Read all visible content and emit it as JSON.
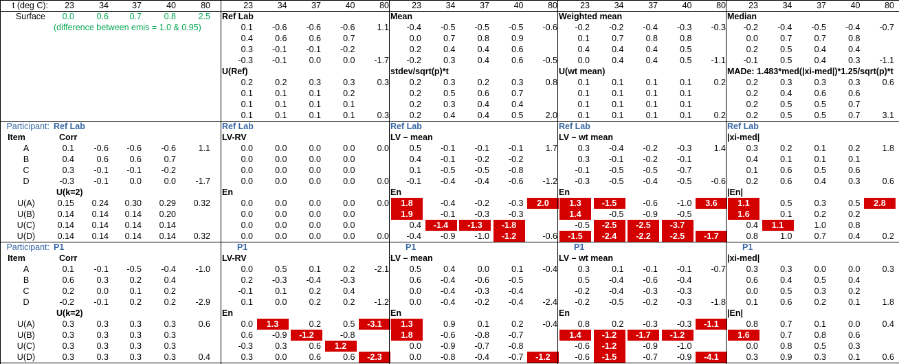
{
  "header": {
    "label": "t (deg C):",
    "temps": [
      "23",
      "34",
      "37",
      "40",
      "80"
    ]
  },
  "surface": {
    "label": "Surface",
    "values": [
      "0.0",
      "0.6",
      "0.7",
      "0.8",
      "2.5"
    ],
    "note": "(difference between emis = 1.0 & 0.95)"
  },
  "stats": [
    {
      "title": "Ref Lab",
      "rows": [
        [
          "0.1",
          "-0.6",
          "-0.6",
          "-0.6",
          "1.1"
        ],
        [
          "0.4",
          "0.6",
          "0.6",
          "0.7",
          ""
        ],
        [
          "0.3",
          "-0.1",
          "-0.1",
          "-0.2",
          ""
        ],
        [
          "-0.3",
          "-0.1",
          "0.0",
          "0.0",
          "-1.7"
        ]
      ],
      "u_title": "U(Ref)",
      "u_rows": [
        [
          "0.2",
          "0.2",
          "0.3",
          "0.3",
          "0.3"
        ],
        [
          "0.1",
          "0.1",
          "0.1",
          "0.2",
          ""
        ],
        [
          "0.1",
          "0.1",
          "0.1",
          "0.1",
          ""
        ],
        [
          "0.1",
          "0.1",
          "0.1",
          "0.1",
          "0.3"
        ]
      ]
    },
    {
      "title": "Mean",
      "rows": [
        [
          "-0.4",
          "-0.5",
          "-0.5",
          "-0.5",
          "-0.6"
        ],
        [
          "0.0",
          "0.7",
          "0.8",
          "0.9",
          ""
        ],
        [
          "0.2",
          "0.4",
          "0.4",
          "0.6",
          ""
        ],
        [
          "-0.2",
          "0.3",
          "0.4",
          "0.6",
          "-0.5"
        ]
      ],
      "u_title": "stdev/sqrt(p)*t",
      "u_rows": [
        [
          "0.2",
          "0.3",
          "0.2",
          "0.3",
          "0.8"
        ],
        [
          "0.2",
          "0.5",
          "0.6",
          "0.7",
          ""
        ],
        [
          "0.2",
          "0.3",
          "0.4",
          "0.4",
          ""
        ],
        [
          "0.2",
          "0.4",
          "0.4",
          "0.5",
          "2.0"
        ]
      ]
    },
    {
      "title": "Weighted mean",
      "rows": [
        [
          "-0.2",
          "-0.2",
          "-0.4",
          "-0.3",
          "-0.3"
        ],
        [
          "0.1",
          "0.7",
          "0.8",
          "0.8",
          ""
        ],
        [
          "0.4",
          "0.4",
          "0.4",
          "0.5",
          ""
        ],
        [
          "0.0",
          "0.4",
          "0.4",
          "0.5",
          "-1.1"
        ]
      ],
      "u_title": "U(wt mean)",
      "u_rows": [
        [
          "0.1",
          "0.1",
          "0.1",
          "0.1",
          "0.2"
        ],
        [
          "0.1",
          "0.1",
          "0.1",
          "0.1",
          ""
        ],
        [
          "0.1",
          "0.1",
          "0.1",
          "0.1",
          ""
        ],
        [
          "0.1",
          "0.1",
          "0.1",
          "0.1",
          "0.2"
        ]
      ]
    },
    {
      "title": "Median",
      "rows": [
        [
          "-0.2",
          "-0.4",
          "-0.5",
          "-0.4",
          "-0.7"
        ],
        [
          "0.0",
          "0.7",
          "0.7",
          "0.8",
          ""
        ],
        [
          "0.2",
          "0.5",
          "0.4",
          "0.4",
          ""
        ],
        [
          "-0.1",
          "0.5",
          "0.4",
          "0.3",
          "-1.1"
        ]
      ],
      "u_title": "MADe: 1.483*med(|xi-med|)*1.25/sqrt(p)*t",
      "u_rows": [
        [
          "0.2",
          "0.3",
          "0.3",
          "0.3",
          "0.6"
        ],
        [
          "0.2",
          "0.4",
          "0.6",
          "0.6",
          ""
        ],
        [
          "0.2",
          "0.5",
          "0.5",
          "0.7",
          ""
        ],
        [
          "0.2",
          "0.5",
          "0.5",
          "0.7",
          "3.1"
        ]
      ]
    }
  ],
  "participants": [
    {
      "label": "Participant:",
      "name": "Ref Lab",
      "item_label": "Item",
      "items": [
        "A",
        "B",
        "C",
        "D"
      ],
      "corr_title": "Corr",
      "corr": [
        [
          "0.1",
          "-0.6",
          "-0.6",
          "-0.6",
          "1.1"
        ],
        [
          "0.4",
          "0.6",
          "0.6",
          "0.7",
          ""
        ],
        [
          "0.3",
          "-0.1",
          "-0.1",
          "-0.2",
          ""
        ],
        [
          "-0.3",
          "-0.1",
          "0.0",
          "0.0",
          "-1.7"
        ]
      ],
      "u_title": "U(k=2)",
      "u_labels": [
        "U(A)",
        "U(B)",
        "U(C)",
        "U(D)"
      ],
      "u": [
        [
          "0.15",
          "0.24",
          "0.30",
          "0.29",
          "0.32"
        ],
        [
          "0.14",
          "0.14",
          "0.14",
          "0.20",
          ""
        ],
        [
          "0.14",
          "0.14",
          "0.14",
          "0.14",
          ""
        ],
        [
          "0.14",
          "0.14",
          "0.14",
          "0.14",
          "0.32"
        ]
      ],
      "blocks": [
        {
          "name": "Ref Lab",
          "title": "LV-RV",
          "rows": [
            [
              "0.0",
              "0.0",
              "0.0",
              "0.0",
              "0.0"
            ],
            [
              "0.0",
              "0.0",
              "0.0",
              "0.0",
              ""
            ],
            [
              "0.0",
              "0.0",
              "0.0",
              "0.0",
              ""
            ],
            [
              "0.0",
              "0.0",
              "0.0",
              "0.0",
              "0.0"
            ]
          ],
          "en_title": "En",
          "en": [
            [
              "0.0",
              "0.0",
              "0.0",
              "0.0",
              "0.0"
            ],
            [
              "0.0",
              "0.0",
              "0.0",
              "0.0",
              ""
            ],
            [
              "0.0",
              "0.0",
              "0.0",
              "0.0",
              ""
            ],
            [
              "0.0",
              "0.0",
              "0.0",
              "0.0",
              "0.0"
            ]
          ]
        },
        {
          "name": "Ref Lab",
          "title": "LV – mean",
          "rows": [
            [
              "0.5",
              "-0.1",
              "-0.1",
              "-0.1",
              "1.7"
            ],
            [
              "0.4",
              "-0.1",
              "-0.2",
              "-0.2",
              ""
            ],
            [
              "0.1",
              "-0.5",
              "-0.5",
              "-0.8",
              ""
            ],
            [
              "-0.1",
              "-0.4",
              "-0.4",
              "-0.6",
              "-1.2"
            ]
          ],
          "en_title": "En",
          "en": [
            [
              "1.8",
              "-0.4",
              "-0.2",
              "-0.3",
              "2.0"
            ],
            [
              "1.9",
              "-0.1",
              "-0.3",
              "-0.3",
              ""
            ],
            [
              "0.4",
              "-1.4",
              "-1.3",
              "-1.8",
              ""
            ],
            [
              "-0.4",
              "-0.9",
              "-1.0",
              "-1.2",
              "-0.6"
            ]
          ]
        },
        {
          "name": "Ref Lab",
          "title": "LV – wt mean",
          "rows": [
            [
              "0.3",
              "-0.4",
              "-0.2",
              "-0.3",
              "1.4"
            ],
            [
              "0.3",
              "-0.1",
              "-0.2",
              "-0.1",
              ""
            ],
            [
              "-0.1",
              "-0.5",
              "-0.5",
              "-0.7",
              ""
            ],
            [
              "-0.3",
              "-0.5",
              "-0.4",
              "-0.5",
              "-0.6"
            ]
          ],
          "en_title": "En",
          "en": [
            [
              "1.3",
              "-1.5",
              "-0.6",
              "-1.0",
              "3.6"
            ],
            [
              "1.4",
              "-0.5",
              "-0.9",
              "-0.5",
              ""
            ],
            [
              "-0.5",
              "-2.5",
              "-2.5",
              "-3.7",
              ""
            ],
            [
              "-1.5",
              "-2.4",
              "-2.2",
              "-2.5",
              "-1.7"
            ]
          ]
        },
        {
          "name": "Ref Lab",
          "title": "|xi-med|",
          "rows": [
            [
              "0.3",
              "0.2",
              "0.1",
              "0.2",
              "1.8"
            ],
            [
              "0.4",
              "0.1",
              "0.1",
              "0.1",
              ""
            ],
            [
              "0.1",
              "0.6",
              "0.5",
              "0.6",
              ""
            ],
            [
              "0.2",
              "0.6",
              "0.4",
              "0.3",
              "0.6"
            ]
          ],
          "en_title": "|En|",
          "en": [
            [
              "1.1",
              "0.5",
              "0.3",
              "0.5",
              "2.8"
            ],
            [
              "1.6",
              "0.1",
              "0.2",
              "0.2",
              ""
            ],
            [
              "0.4",
              "1.1",
              "1.0",
              "0.8",
              ""
            ],
            [
              "0.8",
              "1.0",
              "0.7",
              "0.4",
              "0.2"
            ]
          ]
        }
      ]
    },
    {
      "label": "Participant:",
      "name": "P1",
      "item_label": "Item",
      "items": [
        "A",
        "B",
        "C",
        "D"
      ],
      "corr_title": "Corr",
      "corr": [
        [
          "0.1",
          "-0.1",
          "-0.5",
          "-0.4",
          "-1.0"
        ],
        [
          "0.6",
          "0.3",
          "0.2",
          "0.4",
          ""
        ],
        [
          "0.2",
          "0.0",
          "0.1",
          "0.2",
          ""
        ],
        [
          "-0.2",
          "-0.1",
          "0.2",
          "0.2",
          "-2.9"
        ]
      ],
      "u_title": "U(k=2)",
      "u_labels": [
        "U(A)",
        "U(B)",
        "U(C)",
        "U(D)"
      ],
      "u": [
        [
          "0.3",
          "0.3",
          "0.3",
          "0.3",
          "0.6"
        ],
        [
          "0.3",
          "0.3",
          "0.3",
          "0.3",
          ""
        ],
        [
          "0.3",
          "0.3",
          "0.3",
          "0.3",
          ""
        ],
        [
          "0.3",
          "0.3",
          "0.3",
          "0.3",
          "0.4"
        ]
      ],
      "blocks": [
        {
          "name": "P1",
          "title": "LV-RV",
          "rows": [
            [
              "0.0",
              "0.5",
              "0.1",
              "0.2",
              "-2.1"
            ],
            [
              "0.2",
              "-0.3",
              "-0.4",
              "-0.3",
              ""
            ],
            [
              "-0.1",
              "0.1",
              "0.2",
              "0.4",
              ""
            ],
            [
              "0.1",
              "0.0",
              "0.2",
              "0.2",
              "-1.2"
            ]
          ],
          "en_title": "En",
          "en": [
            [
              "0.0",
              "1.3",
              "0.2",
              "0.5",
              "-3.1"
            ],
            [
              "0.6",
              "-0.9",
              "-1.2",
              "-0.8",
              ""
            ],
            [
              "-0.3",
              "0.3",
              "0.6",
              "1.2",
              ""
            ],
            [
              "0.3",
              "0.0",
              "0.6",
              "0.6",
              "-2.3"
            ]
          ]
        },
        {
          "name": "P1",
          "title": "LV – mean",
          "rows": [
            [
              "0.5",
              "0.4",
              "0.0",
              "0.1",
              "-0.4"
            ],
            [
              "0.6",
              "-0.4",
              "-0.6",
              "-0.5",
              ""
            ],
            [
              "0.0",
              "-0.4",
              "-0.3",
              "-0.4",
              ""
            ],
            [
              "0.0",
              "-0.4",
              "-0.2",
              "-0.4",
              "-2.4"
            ]
          ],
          "en_title": "En",
          "en": [
            [
              "1.3",
              "0.9",
              "0.1",
              "0.2",
              "-0.4"
            ],
            [
              "1.8",
              "-0.6",
              "-0.8",
              "-0.7",
              ""
            ],
            [
              "0.0",
              "-0.9",
              "-0.7",
              "-0.8",
              ""
            ],
            [
              "0.0",
              "-0.8",
              "-0.4",
              "-0.7",
              "-1.2"
            ]
          ]
        },
        {
          "name": "P1",
          "title": "LV – wt mean",
          "rows": [
            [
              "0.3",
              "0.1",
              "-0.1",
              "-0.1",
              "-0.7"
            ],
            [
              "0.5",
              "-0.4",
              "-0.6",
              "-0.4",
              ""
            ],
            [
              "-0.2",
              "-0.4",
              "-0.3",
              "-0.3",
              ""
            ],
            [
              "-0.2",
              "-0.5",
              "-0.2",
              "-0.3",
              "-1.8"
            ]
          ],
          "en_title": "En",
          "en": [
            [
              "0.8",
              "0.2",
              "-0.3",
              "-0.3",
              "-1.1"
            ],
            [
              "1.4",
              "-1.2",
              "-1.7",
              "-1.2",
              ""
            ],
            [
              "-0.6",
              "-1.2",
              "-0.9",
              "-1.0",
              ""
            ],
            [
              "-0.6",
              "-1.5",
              "-0.7",
              "-0.9",
              "-4.1"
            ]
          ]
        },
        {
          "name": "P1",
          "title": "|xi-med|",
          "rows": [
            [
              "0.3",
              "0.3",
              "0.0",
              "0.0",
              "0.3"
            ],
            [
              "0.6",
              "0.4",
              "0.5",
              "0.4",
              ""
            ],
            [
              "0.0",
              "0.5",
              "0.3",
              "0.2",
              ""
            ],
            [
              "0.1",
              "0.6",
              "0.2",
              "0.1",
              "1.8"
            ]
          ],
          "en_title": "|En|",
          "en": [
            [
              "0.8",
              "0.7",
              "0.1",
              "0.0",
              "0.4"
            ],
            [
              "1.6",
              "0.7",
              "0.8",
              "0.6",
              ""
            ],
            [
              "0.0",
              "0.8",
              "0.5",
              "0.3",
              ""
            ],
            [
              "0.3",
              "0.9",
              "0.3",
              "0.1",
              "0.6"
            ]
          ]
        }
      ]
    }
  ],
  "colors": {
    "highlight": "#d40000",
    "participant_label": "#3465a4",
    "note": "#00a651"
  }
}
